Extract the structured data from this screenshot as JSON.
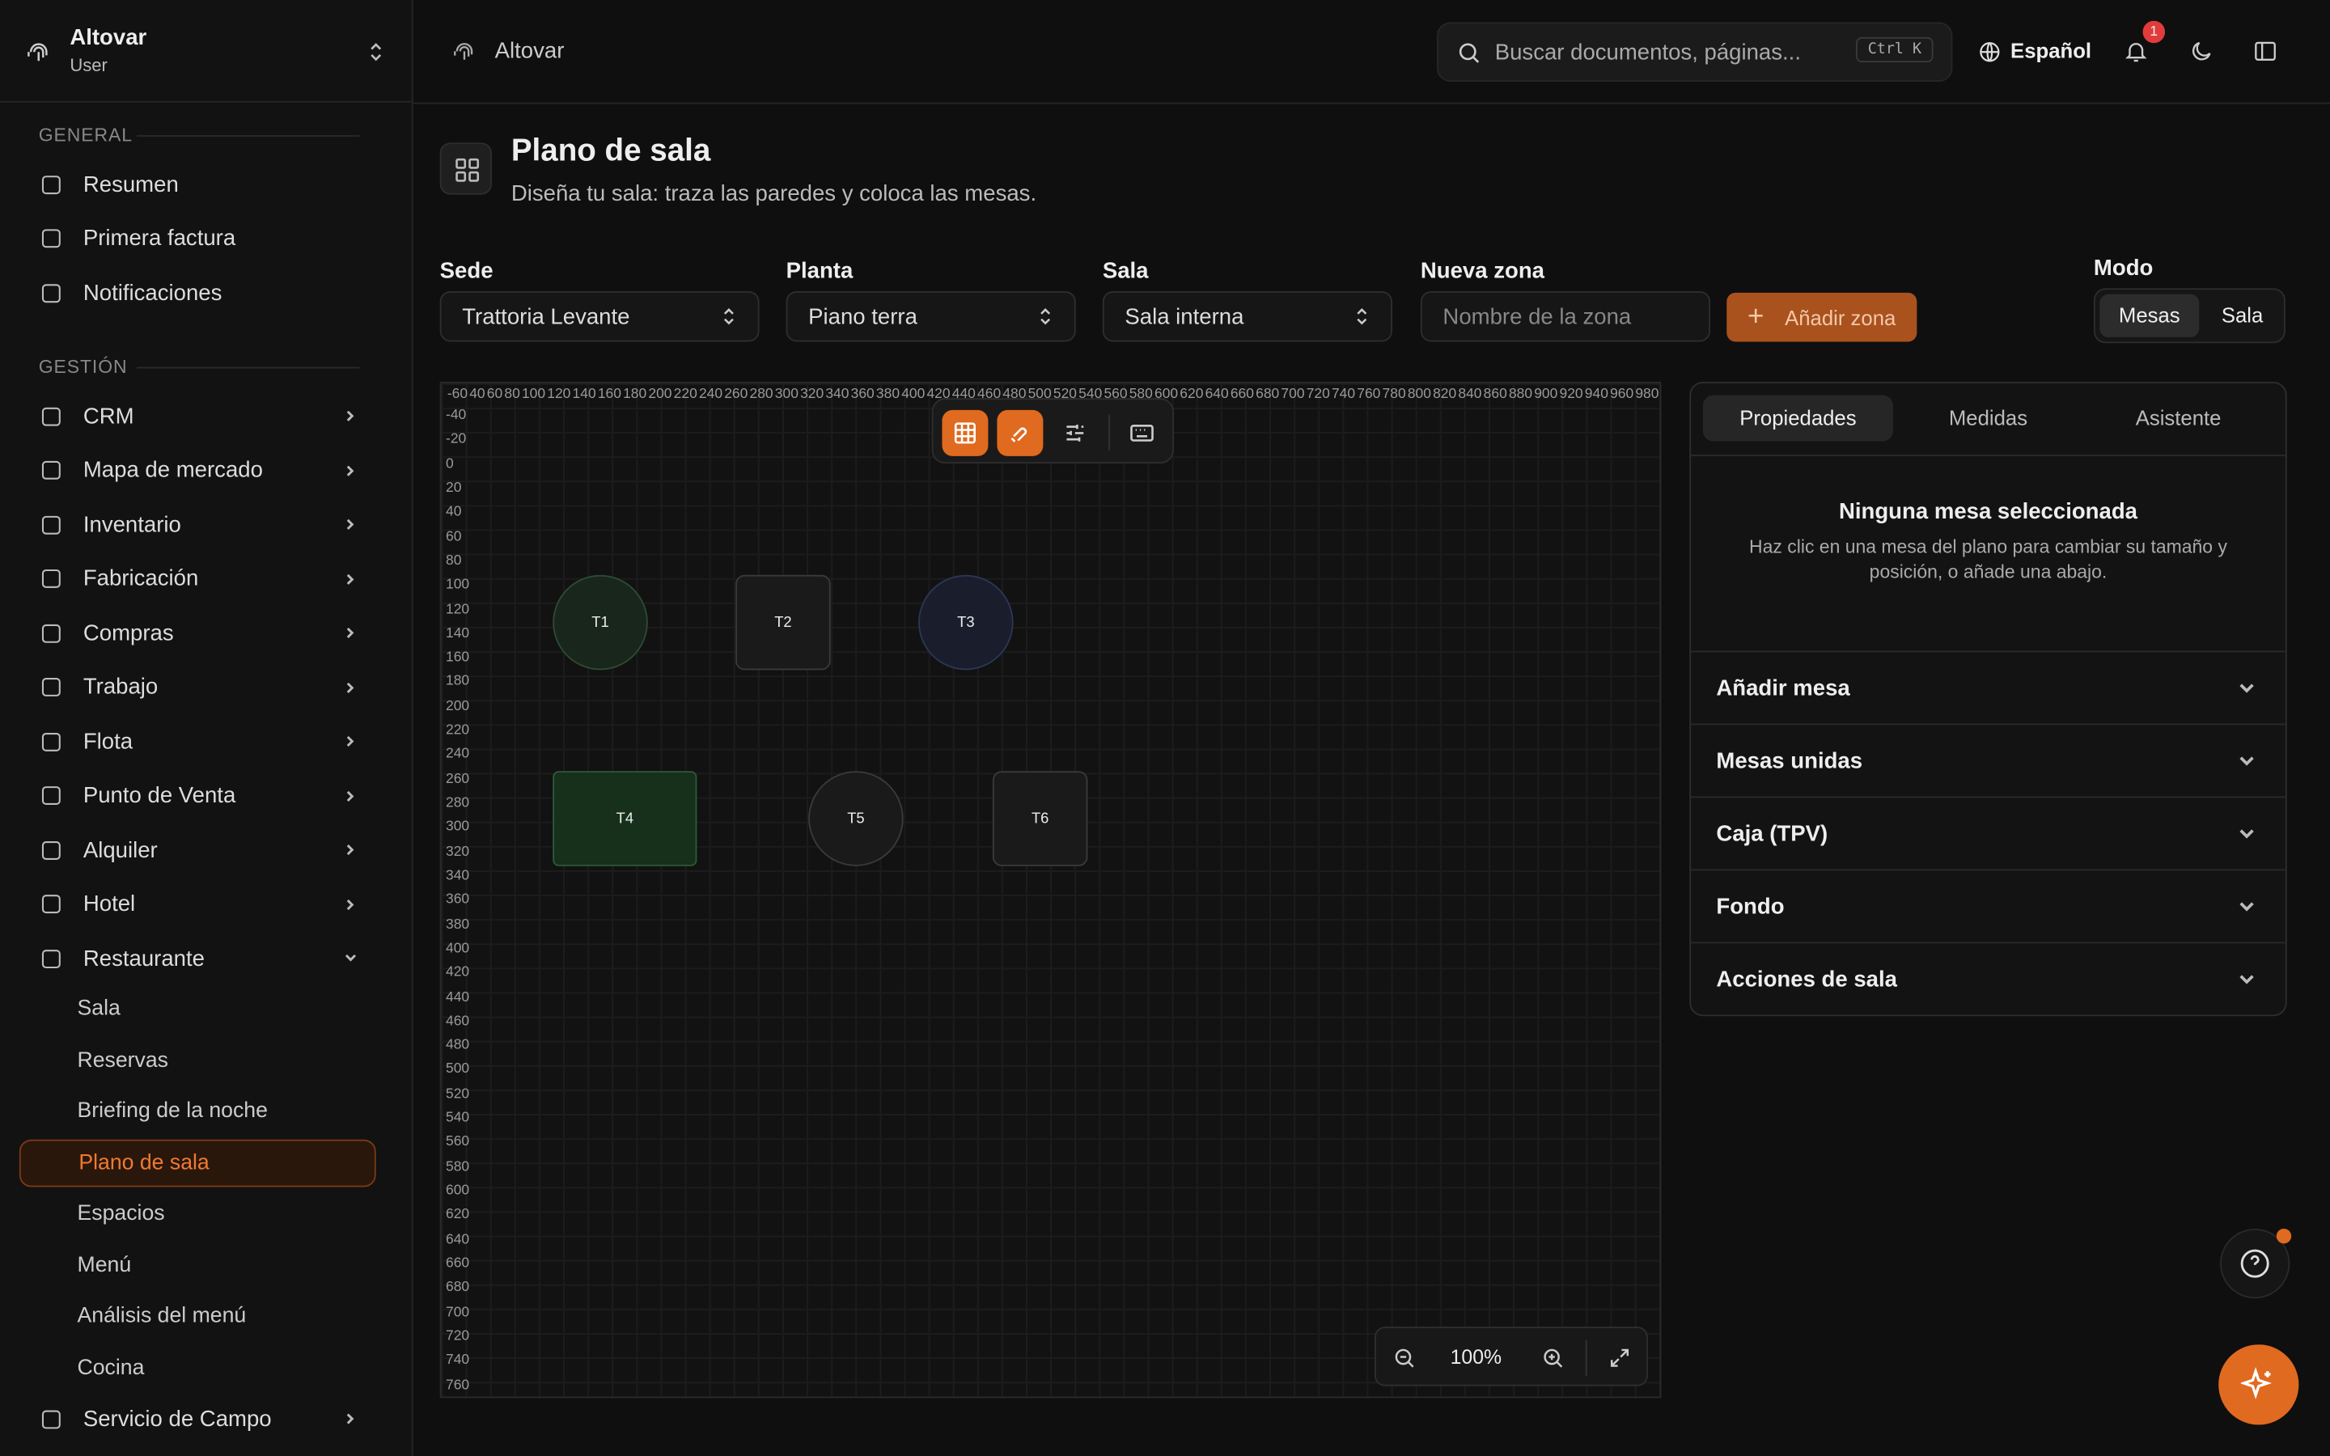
{
  "sidebar": {
    "org": "Altovar",
    "role": "User",
    "general_title": "GENERAL",
    "general": [
      "Resumen",
      "Primera factura",
      "Notificaciones"
    ],
    "gestion_title": "GESTIÓN",
    "gestion": [
      "CRM",
      "Mapa de mercado",
      "Inventario",
      "Fabricación",
      "Compras",
      "Trabajo",
      "Flota",
      "Punto de Venta",
      "Alquiler",
      "Hotel",
      "Restaurante"
    ],
    "restaurante": [
      "Sala",
      "Reservas",
      "Briefing de la noche",
      "Plano de sala",
      "Espacios",
      "Menú",
      "Análisis del menú",
      "Cocina"
    ],
    "last": "Servicio de Campo"
  },
  "topbar": {
    "breadcrumb": "Altovar",
    "search": "Buscar documentos, páginas...",
    "shortcut": "Ctrl K",
    "language": "Español",
    "badge": 1
  },
  "page": {
    "title": "Plano de sala",
    "subtitle": "Diseña tu sala: traza las paredes y coloca las mesas.",
    "filters": [
      {
        "label": "Sede",
        "value": "Trattoria Levante"
      },
      {
        "label": "Planta",
        "value": "Piano terra"
      },
      {
        "label": "Sala",
        "value": "Sala interna"
      }
    ],
    "zone_label": "Nueva zona",
    "zone_placeholder": "Nombre de la zona",
    "add_zone": "Añadir zona",
    "mode_label": "Modo",
    "modes": [
      "Mesas",
      "Sala"
    ]
  },
  "canvas": {
    "xruler": [
      -60,
      40,
      60,
      80,
      100,
      120,
      140,
      160,
      180,
      200,
      220,
      240,
      260,
      280,
      300,
      320,
      340,
      360,
      380,
      400,
      420,
      440,
      460,
      480,
      500,
      520,
      540,
      560,
      580,
      600,
      620,
      640,
      660,
      680,
      700,
      720,
      740,
      760,
      780,
      800,
      820,
      840,
      860,
      880,
      900,
      920,
      940,
      960,
      980
    ],
    "yruler": [
      -40,
      -20,
      0,
      20,
      40,
      60,
      80,
      100,
      120,
      140,
      160,
      180,
      200,
      220,
      240,
      260,
      280,
      300,
      320,
      340,
      360,
      380,
      400,
      420,
      440,
      460,
      480,
      500,
      520,
      540,
      560,
      580,
      600,
      620,
      640,
      660,
      680,
      700,
      720,
      740,
      760
    ],
    "tables": [
      "T1",
      "T2",
      "T3",
      "T4",
      "T5",
      "T6"
    ],
    "zoom": "100%"
  },
  "panel": {
    "tabs": [
      "Propiedades",
      "Medidas",
      "Asistente"
    ],
    "empty_title": "Ninguna mesa seleccionada",
    "empty_text": "Haz clic en una mesa del plano para cambiar su tamaño y posición, o añade una abajo.",
    "sections": [
      "Añadir mesa",
      "Mesas unidas",
      "Caja (TPV)",
      "Fondo",
      "Acciones de sala"
    ]
  }
}
